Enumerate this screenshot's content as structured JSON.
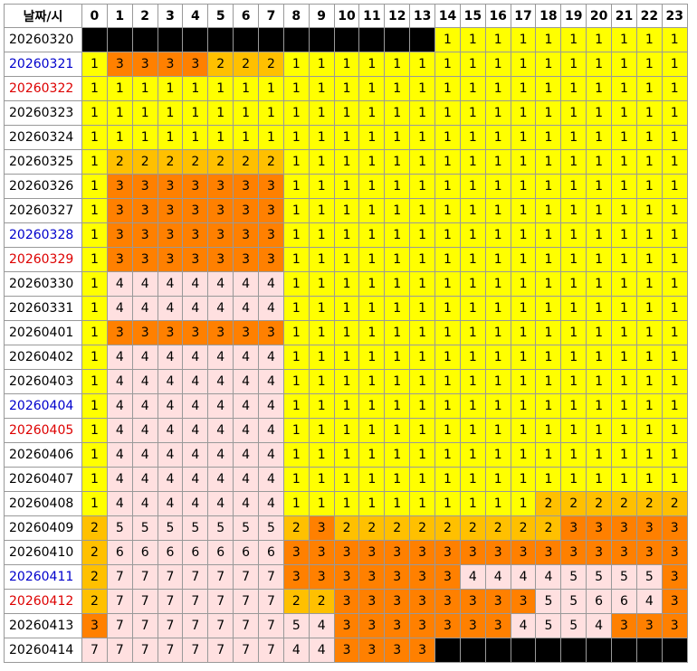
{
  "table": {
    "header": [
      "날짜/시",
      "0",
      "1",
      "2",
      "3",
      "4",
      "5",
      "6",
      "7",
      "8",
      "9",
      "10",
      "11",
      "12",
      "13",
      "14",
      "15",
      "16",
      "17",
      "18",
      "19",
      "20",
      "21",
      "22",
      "23"
    ],
    "cell_colors": {
      "1": "#ffff00",
      "2": "#ffc000",
      "3": "#ff8000",
      "4": "#ffe0e0",
      "5": "#ffe0e0",
      "6": "#ffe0e0",
      "7": "#ffe0e0",
      "empty": "#000000"
    },
    "rows": [
      {
        "date": "20260320",
        "values": [
          null,
          null,
          null,
          null,
          null,
          null,
          null,
          null,
          null,
          null,
          null,
          null,
          null,
          null,
          1,
          1,
          1,
          1,
          1,
          1,
          1,
          1,
          1,
          1
        ]
      },
      {
        "date": "20260321",
        "color": "#0000cc",
        "values": [
          1,
          3,
          3,
          3,
          3,
          2,
          2,
          2,
          1,
          1,
          1,
          1,
          1,
          1,
          1,
          1,
          1,
          1,
          1,
          1,
          1,
          1,
          1,
          1
        ]
      },
      {
        "date": "20260322",
        "color": "#dd0000",
        "values": [
          1,
          1,
          1,
          1,
          1,
          1,
          1,
          1,
          1,
          1,
          1,
          1,
          1,
          1,
          1,
          1,
          1,
          1,
          1,
          1,
          1,
          1,
          1,
          1
        ]
      },
      {
        "date": "20260323",
        "values": [
          1,
          1,
          1,
          1,
          1,
          1,
          1,
          1,
          1,
          1,
          1,
          1,
          1,
          1,
          1,
          1,
          1,
          1,
          1,
          1,
          1,
          1,
          1,
          1
        ]
      },
      {
        "date": "20260324",
        "values": [
          1,
          1,
          1,
          1,
          1,
          1,
          1,
          1,
          1,
          1,
          1,
          1,
          1,
          1,
          1,
          1,
          1,
          1,
          1,
          1,
          1,
          1,
          1,
          1
        ]
      },
      {
        "date": "20260325",
        "values": [
          1,
          2,
          2,
          2,
          2,
          2,
          2,
          2,
          1,
          1,
          1,
          1,
          1,
          1,
          1,
          1,
          1,
          1,
          1,
          1,
          1,
          1,
          1,
          1
        ]
      },
      {
        "date": "20260326",
        "values": [
          1,
          3,
          3,
          3,
          3,
          3,
          3,
          3,
          1,
          1,
          1,
          1,
          1,
          1,
          1,
          1,
          1,
          1,
          1,
          1,
          1,
          1,
          1,
          1
        ]
      },
      {
        "date": "20260327",
        "values": [
          1,
          3,
          3,
          3,
          3,
          3,
          3,
          3,
          1,
          1,
          1,
          1,
          1,
          1,
          1,
          1,
          1,
          1,
          1,
          1,
          1,
          1,
          1,
          1
        ]
      },
      {
        "date": "20260328",
        "color": "#0000cc",
        "values": [
          1,
          3,
          3,
          3,
          3,
          3,
          3,
          3,
          1,
          1,
          1,
          1,
          1,
          1,
          1,
          1,
          1,
          1,
          1,
          1,
          1,
          1,
          1,
          1
        ]
      },
      {
        "date": "20260329",
        "color": "#dd0000",
        "values": [
          1,
          3,
          3,
          3,
          3,
          3,
          3,
          3,
          1,
          1,
          1,
          1,
          1,
          1,
          1,
          1,
          1,
          1,
          1,
          1,
          1,
          1,
          1,
          1
        ]
      },
      {
        "date": "20260330",
        "values": [
          1,
          4,
          4,
          4,
          4,
          4,
          4,
          4,
          1,
          1,
          1,
          1,
          1,
          1,
          1,
          1,
          1,
          1,
          1,
          1,
          1,
          1,
          1,
          1
        ]
      },
      {
        "date": "20260331",
        "values": [
          1,
          4,
          4,
          4,
          4,
          4,
          4,
          4,
          1,
          1,
          1,
          1,
          1,
          1,
          1,
          1,
          1,
          1,
          1,
          1,
          1,
          1,
          1,
          1
        ]
      },
      {
        "date": "20260401",
        "values": [
          1,
          3,
          3,
          3,
          3,
          3,
          3,
          3,
          1,
          1,
          1,
          1,
          1,
          1,
          1,
          1,
          1,
          1,
          1,
          1,
          1,
          1,
          1,
          1
        ]
      },
      {
        "date": "20260402",
        "values": [
          1,
          4,
          4,
          4,
          4,
          4,
          4,
          4,
          1,
          1,
          1,
          1,
          1,
          1,
          1,
          1,
          1,
          1,
          1,
          1,
          1,
          1,
          1,
          1
        ]
      },
      {
        "date": "20260403",
        "values": [
          1,
          4,
          4,
          4,
          4,
          4,
          4,
          4,
          1,
          1,
          1,
          1,
          1,
          1,
          1,
          1,
          1,
          1,
          1,
          1,
          1,
          1,
          1,
          1
        ]
      },
      {
        "date": "20260404",
        "color": "#0000cc",
        "values": [
          1,
          4,
          4,
          4,
          4,
          4,
          4,
          4,
          1,
          1,
          1,
          1,
          1,
          1,
          1,
          1,
          1,
          1,
          1,
          1,
          1,
          1,
          1,
          1
        ]
      },
      {
        "date": "20260405",
        "color": "#dd0000",
        "values": [
          1,
          4,
          4,
          4,
          4,
          4,
          4,
          4,
          1,
          1,
          1,
          1,
          1,
          1,
          1,
          1,
          1,
          1,
          1,
          1,
          1,
          1,
          1,
          1
        ]
      },
      {
        "date": "20260406",
        "values": [
          1,
          4,
          4,
          4,
          4,
          4,
          4,
          4,
          1,
          1,
          1,
          1,
          1,
          1,
          1,
          1,
          1,
          1,
          1,
          1,
          1,
          1,
          1,
          1
        ]
      },
      {
        "date": "20260407",
        "values": [
          1,
          4,
          4,
          4,
          4,
          4,
          4,
          4,
          1,
          1,
          1,
          1,
          1,
          1,
          1,
          1,
          1,
          1,
          1,
          1,
          1,
          1,
          1,
          1
        ]
      },
      {
        "date": "20260408",
        "values": [
          1,
          4,
          4,
          4,
          4,
          4,
          4,
          4,
          1,
          1,
          1,
          1,
          1,
          1,
          1,
          1,
          1,
          1,
          2,
          2,
          2,
          2,
          2,
          2
        ]
      },
      {
        "date": "20260409",
        "values": [
          2,
          5,
          5,
          5,
          5,
          5,
          5,
          5,
          2,
          3,
          2,
          2,
          2,
          2,
          2,
          2,
          2,
          2,
          2,
          3,
          3,
          3,
          3,
          3
        ]
      },
      {
        "date": "20260410",
        "values": [
          2,
          6,
          6,
          6,
          6,
          6,
          6,
          6,
          3,
          3,
          3,
          3,
          3,
          3,
          3,
          3,
          3,
          3,
          3,
          3,
          3,
          3,
          3,
          3
        ]
      },
      {
        "date": "20260411",
        "color": "#0000cc",
        "values": [
          2,
          7,
          7,
          7,
          7,
          7,
          7,
          7,
          3,
          3,
          3,
          3,
          3,
          3,
          3,
          4,
          4,
          4,
          4,
          5,
          5,
          5,
          5,
          3
        ]
      },
      {
        "date": "20260412",
        "color": "#dd0000",
        "values": [
          2,
          7,
          7,
          7,
          7,
          7,
          7,
          7,
          2,
          2,
          3,
          3,
          3,
          3,
          3,
          3,
          3,
          3,
          5,
          5,
          6,
          6,
          4,
          3
        ]
      },
      {
        "date": "20260413",
        "values": [
          3,
          7,
          7,
          7,
          7,
          7,
          7,
          7,
          5,
          4,
          3,
          3,
          3,
          3,
          3,
          3,
          3,
          4,
          5,
          5,
          4,
          3,
          3,
          3
        ]
      },
      {
        "date": "20260414",
        "values": [
          7,
          7,
          7,
          7,
          7,
          7,
          7,
          7,
          4,
          4,
          3,
          3,
          3,
          3,
          null,
          null,
          null,
          null,
          null,
          null,
          null,
          null,
          null,
          null
        ]
      }
    ]
  }
}
